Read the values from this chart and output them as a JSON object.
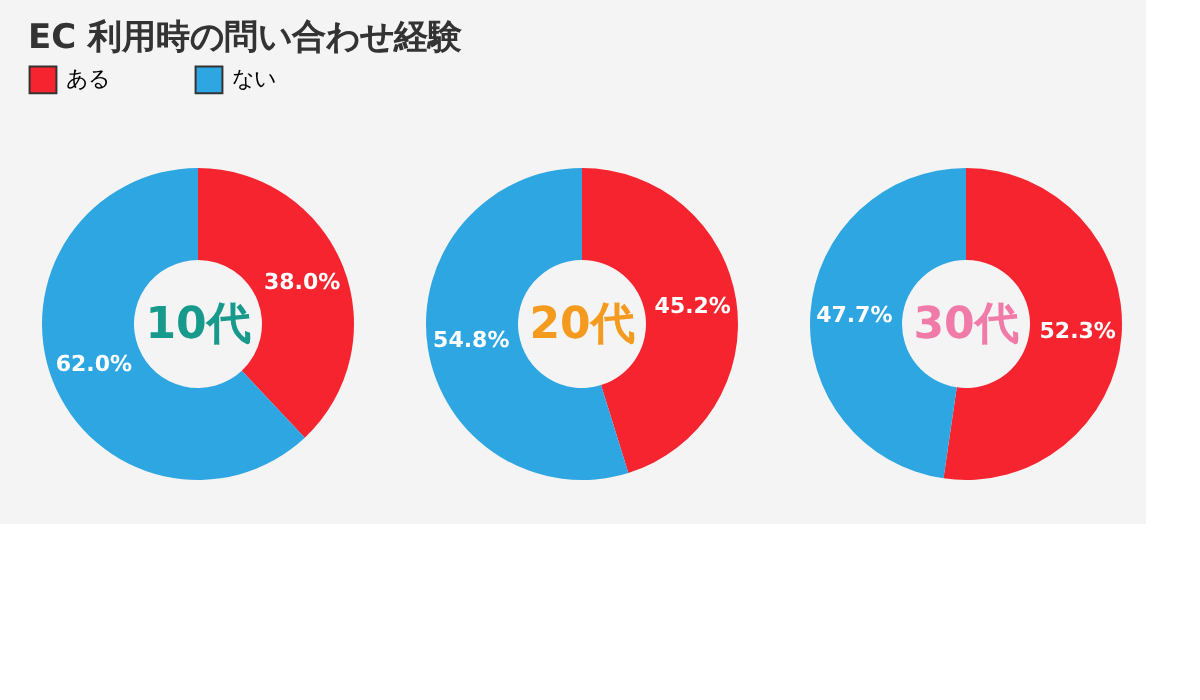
{
  "chart_data": [
    {
      "type": "donut",
      "title": "EC 利用時の問い合わせ経験",
      "categories": [
        "ある",
        "ない"
      ],
      "values": [
        38.0,
        62.0
      ],
      "colors": [
        "#f5242f",
        "#2ea6e1"
      ],
      "value_labels": [
        "38.0%",
        "62.0%"
      ],
      "annotations": [
        "10代"
      ],
      "legend": "top left"
    },
    {
      "type": "donut",
      "categories": [
        null,
        null
      ],
      "values": [
        45.2,
        54.8
      ],
      "colors": [
        "#f5242f",
        "#2ea6e1"
      ],
      "value_labels": [
        "45.2%",
        "54.8%"
      ],
      "annotations": [
        "20代"
      ]
    },
    {
      "type": "donut",
      "categories": [
        null,
        null
      ],
      "values": [
        52.3,
        47.7
      ],
      "colors": [
        "#f5242f",
        "#2ea6e1"
      ],
      "value_labels": [
        "52.3%",
        "47.7%"
      ],
      "annotations": [
        "30代"
      ]
    }
  ]
}
